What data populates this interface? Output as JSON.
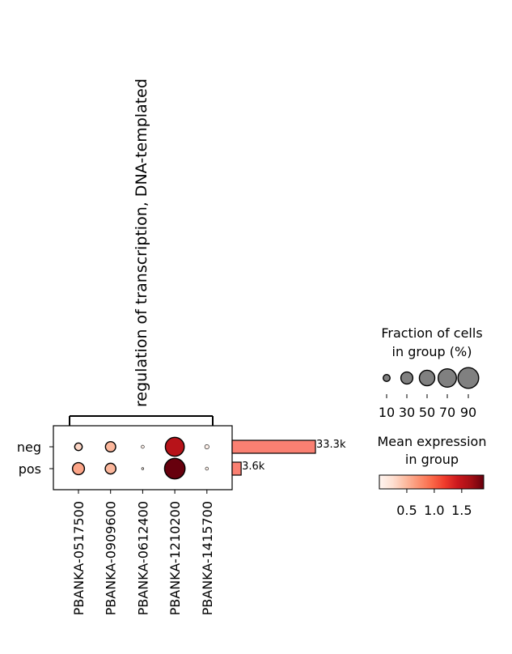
{
  "chart_data": {
    "type": "dotplot",
    "group_label": "regulation of transcription, DNA-templated",
    "genes": [
      "PBANKA-0517500",
      "PBANKA-0909600",
      "PBANKA-0612400",
      "PBANKA-1210200",
      "PBANKA-1415700"
    ],
    "groups": [
      "neg",
      "pos"
    ],
    "fraction_pct": [
      [
        12,
        22,
        2,
        75,
        4
      ],
      [
        30,
        24,
        1,
        88,
        2
      ]
    ],
    "mean_expression": [
      [
        0.3,
        0.5,
        0.05,
        1.55,
        0.05
      ],
      [
        0.6,
        0.5,
        0.05,
        1.9,
        0.05
      ]
    ],
    "group_counts": [
      {
        "group": "neg",
        "value": 33300,
        "label": "33.3k"
      },
      {
        "group": "pos",
        "value": 3600,
        "label": "3.6k"
      }
    ],
    "size_legend": {
      "title_line1": "Fraction of cells",
      "title_line2": "in group (%)",
      "values": [
        10,
        30,
        50,
        70,
        90
      ],
      "labels": [
        "10",
        "30",
        "50",
        "70",
        "90"
      ]
    },
    "color_legend": {
      "title_line1": "Mean expression",
      "title_line2": "in group",
      "vmin": 0.0,
      "vmax": 1.9,
      "ticks": [
        0.5,
        1.0,
        1.5
      ],
      "tick_labels": [
        "0.5",
        "1.0",
        "1.5"
      ],
      "colormap": "Reds",
      "stops": [
        "#fff5f0",
        "#fee0d2",
        "#fcbba1",
        "#fc9272",
        "#fb6a4a",
        "#ef3b2c",
        "#cb181d",
        "#a50f15",
        "#67000d"
      ]
    },
    "bar_color": "#fa8072"
  }
}
